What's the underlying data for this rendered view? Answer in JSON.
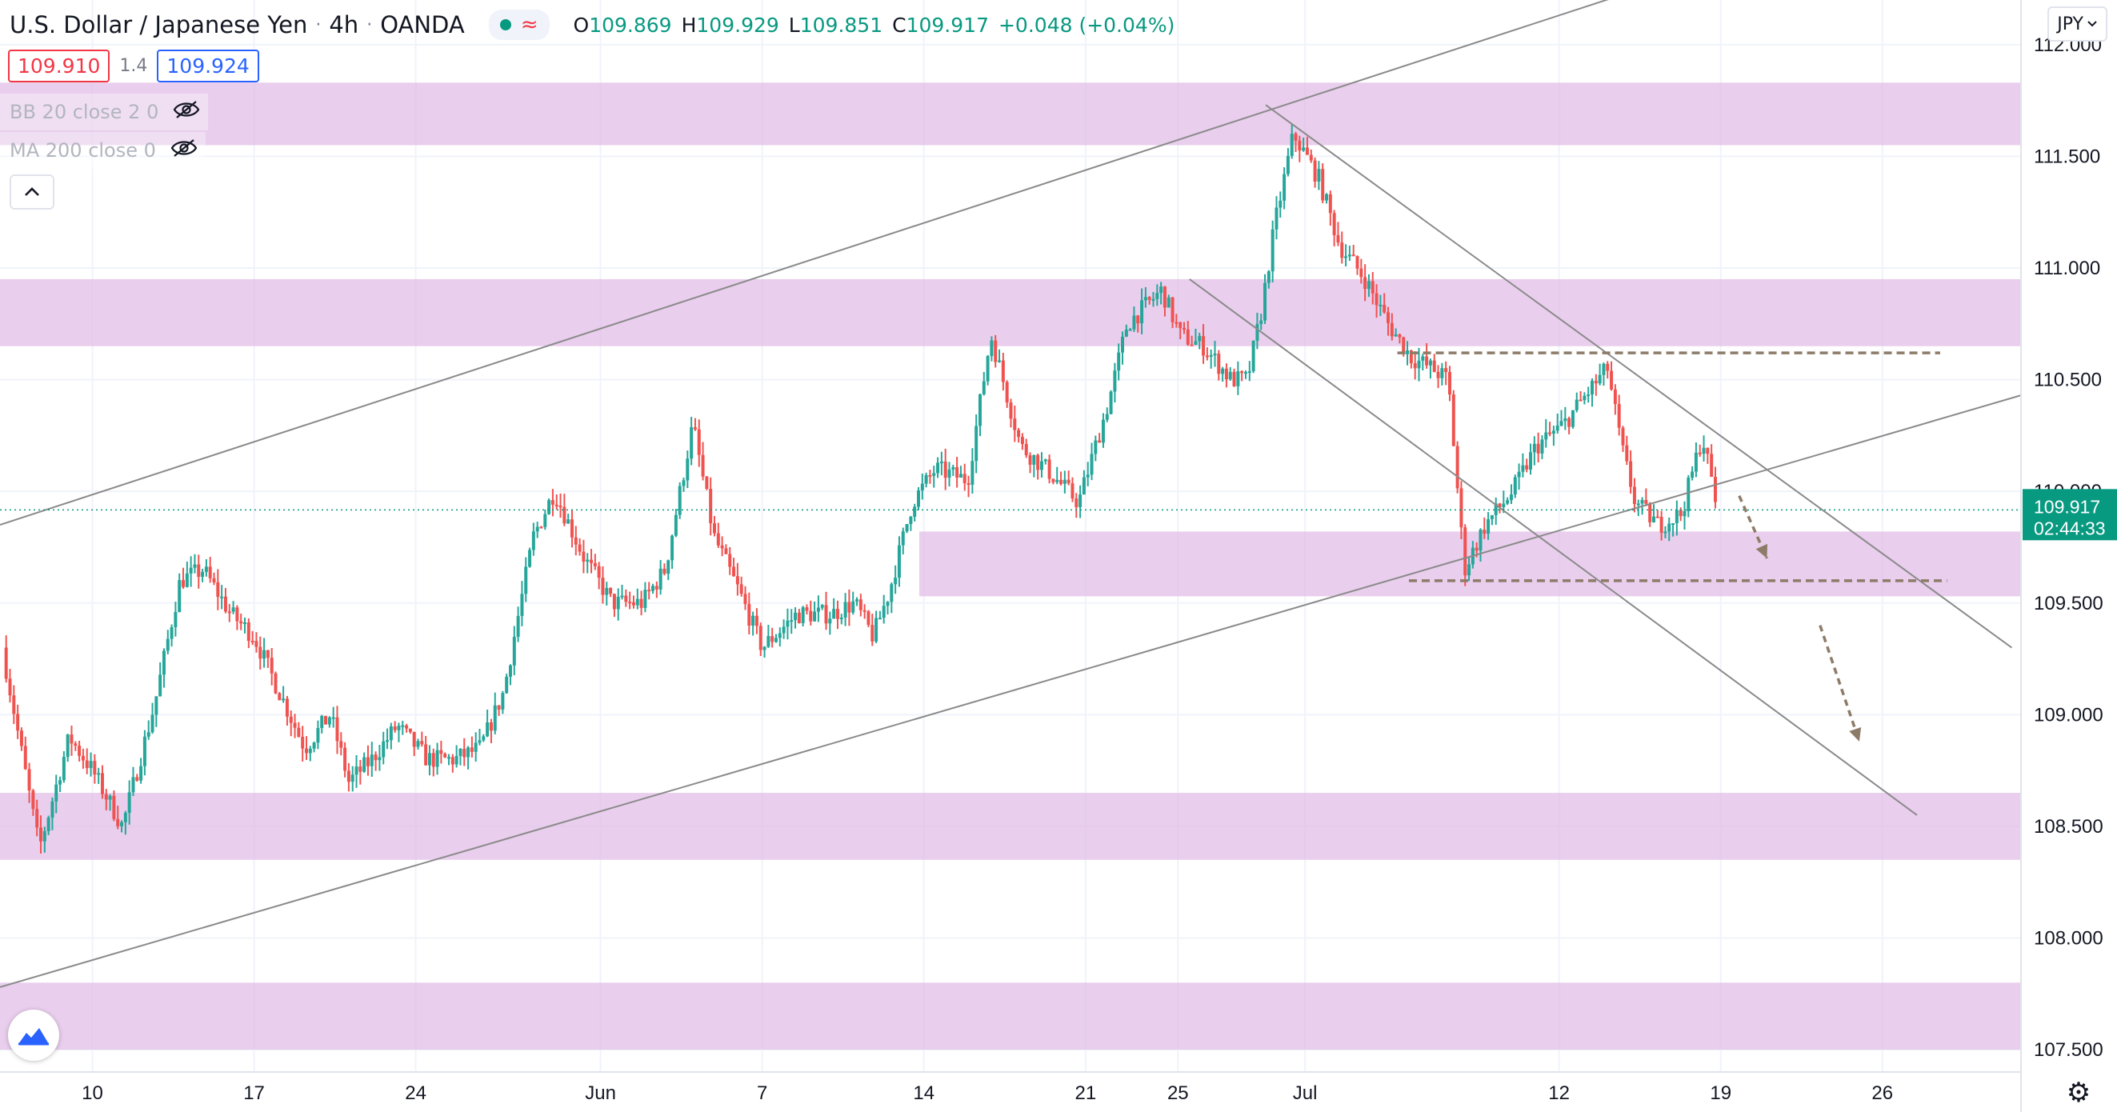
{
  "header": {
    "symbol": "U.S. Dollar / Japanese Yen",
    "interval": "4h",
    "broker": "OANDA",
    "ohlc": {
      "o_label": "O",
      "o": "109.869",
      "h_label": "H",
      "h": "109.929",
      "l_label": "L",
      "l": "109.851",
      "c_label": "C",
      "c": "109.917",
      "change": "+0.048 (+0.04%)"
    }
  },
  "quote": {
    "sell": "109.910",
    "spread": "1.4",
    "buy": "109.924"
  },
  "indicators": [
    {
      "label": "BB 20 close 2 0"
    },
    {
      "label": "MA 200 close 0"
    }
  ],
  "currency": "JPY",
  "last_price": {
    "value": "109.917",
    "countdown": "02:44:33"
  },
  "icons": {
    "visibility": "eye-off-icon",
    "collapse": "chevron-up-icon",
    "currency_menu": "chevron-down-icon",
    "logo": "tradingview-logo-icon",
    "settings": "gear-icon"
  },
  "colors": {
    "up": "#26a69a",
    "down": "#ef5350",
    "zone": "#e1bee7",
    "trendline": "#8a8a8a",
    "projection": "#8d7b68",
    "accent_last": "#089981"
  },
  "chart_data": {
    "type": "candlestick",
    "title": "U.S. Dollar / Japanese Yen",
    "ylim": [
      107.4,
      112.2
    ],
    "y_ticks": [
      "112.000",
      "111.500",
      "111.000",
      "110.500",
      "110.000",
      "109.500",
      "109.000",
      "108.500",
      "108.000",
      "107.500"
    ],
    "x_ticks": [
      "10",
      "17",
      "24",
      "Jun",
      "7",
      "14",
      "21",
      "25",
      "Jul",
      "12",
      "19",
      "26"
    ],
    "x_tick_days": [
      9.5,
      16.5,
      23.5,
      31.5,
      38.5,
      45.5,
      52.5,
      56.5,
      62,
      73,
      80,
      87
    ],
    "x_range_days": [
      5.5,
      93
    ],
    "grid": true,
    "zones": [
      {
        "from": 111.55,
        "to": 111.83
      },
      {
        "from": 110.65,
        "to": 110.95
      },
      {
        "from": 109.53,
        "to": 109.82,
        "start_day": 45.3
      },
      {
        "from": 108.35,
        "to": 108.65
      },
      {
        "from": 107.5,
        "to": 107.8
      }
    ],
    "trendlines": [
      {
        "from": [
          5.5,
          109.85
        ],
        "to": [
          78.0,
          112.3
        ]
      },
      {
        "from": [
          5.5,
          107.78
        ],
        "to": [
          93.0,
          110.43
        ]
      },
      {
        "from": [
          60.3,
          111.73
        ],
        "to": [
          92.6,
          109.3
        ]
      },
      {
        "from": [
          57.0,
          110.95
        ],
        "to": [
          88.5,
          108.55
        ]
      }
    ],
    "levels": [
      {
        "price": 110.62,
        "from_day": 66.0,
        "to_day": 89.5
      },
      {
        "price": 109.6,
        "from_day": 66.5,
        "to_day": 89.8
      }
    ],
    "projections": [
      {
        "from": [
          80.8,
          109.98
        ],
        "to": [
          82.0,
          109.7
        ]
      },
      {
        "from": [
          84.3,
          109.4
        ],
        "to": [
          86.0,
          108.88
        ]
      }
    ],
    "last_price": 109.917,
    "ohlc_anchors": [
      [
        5.6,
        109.3
      ],
      [
        7.2,
        108.4
      ],
      [
        8.5,
        108.9
      ],
      [
        9.5,
        108.75
      ],
      [
        10.8,
        108.5
      ],
      [
        12.2,
        109.05
      ],
      [
        13.3,
        109.6
      ],
      [
        14.3,
        109.65
      ],
      [
        15.5,
        109.45
      ],
      [
        16.5,
        109.35
      ],
      [
        17.6,
        109.1
      ],
      [
        18.7,
        108.85
      ],
      [
        19.8,
        109.0
      ],
      [
        20.6,
        108.7
      ],
      [
        21.6,
        108.8
      ],
      [
        22.7,
        108.95
      ],
      [
        24.0,
        108.8
      ],
      [
        25.2,
        108.8
      ],
      [
        26.3,
        108.85
      ],
      [
        27.3,
        109.1
      ],
      [
        28.6,
        109.8
      ],
      [
        29.5,
        110.0
      ],
      [
        30.8,
        109.7
      ],
      [
        32.0,
        109.5
      ],
      [
        33.3,
        109.5
      ],
      [
        34.3,
        109.65
      ],
      [
        35.5,
        110.3
      ],
      [
        36.4,
        109.8
      ],
      [
        37.5,
        109.55
      ],
      [
        38.5,
        109.3
      ],
      [
        40.0,
        109.45
      ],
      [
        41.5,
        109.45
      ],
      [
        42.5,
        109.5
      ],
      [
        43.3,
        109.35
      ],
      [
        44.0,
        109.55
      ],
      [
        45.0,
        109.95
      ],
      [
        46.0,
        110.1
      ],
      [
        47.4,
        110.05
      ],
      [
        48.4,
        110.7
      ],
      [
        49.7,
        110.2
      ],
      [
        50.8,
        110.1
      ],
      [
        52.2,
        109.95
      ],
      [
        53.5,
        110.4
      ],
      [
        54.3,
        110.75
      ],
      [
        55.8,
        110.9
      ],
      [
        56.6,
        110.7
      ],
      [
        57.6,
        110.65
      ],
      [
        58.8,
        110.5
      ],
      [
        59.5,
        110.5
      ],
      [
        60.1,
        110.8
      ],
      [
        60.7,
        111.2
      ],
      [
        61.5,
        111.6
      ],
      [
        62.6,
        111.4
      ],
      [
        63.5,
        111.1
      ],
      [
        64.6,
        110.95
      ],
      [
        65.6,
        110.75
      ],
      [
        66.6,
        110.6
      ],
      [
        67.5,
        110.55
      ],
      [
        68.2,
        110.5
      ],
      [
        68.9,
        109.65
      ],
      [
        69.8,
        109.85
      ],
      [
        71.0,
        110.0
      ],
      [
        72.0,
        110.2
      ],
      [
        73.2,
        110.3
      ],
      [
        74.3,
        110.45
      ],
      [
        75.1,
        110.55
      ],
      [
        75.7,
        110.2
      ],
      [
        76.3,
        109.95
      ],
      [
        77.3,
        109.85
      ],
      [
        78.3,
        109.9
      ],
      [
        79.2,
        110.25
      ],
      [
        79.9,
        109.9
      ]
    ]
  }
}
